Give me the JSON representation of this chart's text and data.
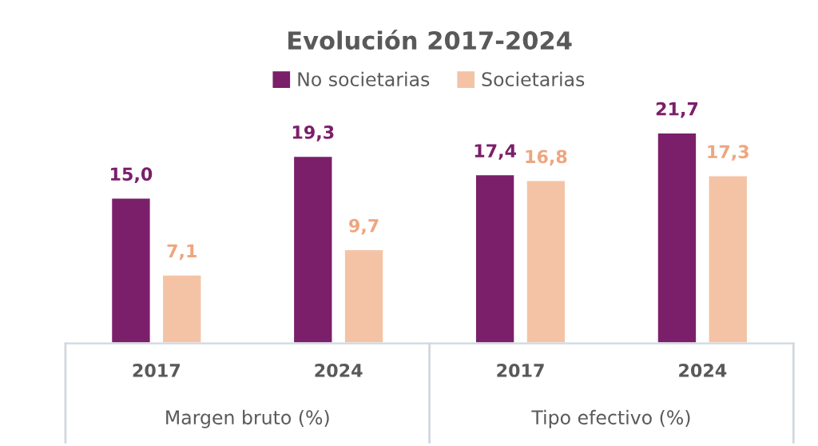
{
  "chart_data": {
    "type": "bar",
    "title": "Evolución 2017-2024",
    "categories": [
      "2017",
      "2024",
      "2017",
      "2024"
    ],
    "annotations": [
      "Margen bruto (%)",
      "Tipo efectivo (%)"
    ],
    "series": [
      {
        "name": "No societarias",
        "color": "#7b1f6a",
        "values": [
          15.0,
          19.3,
          17.4,
          21.7
        ],
        "value_labels": [
          "15,0",
          "19,3",
          "17,4",
          "21,7"
        ]
      },
      {
        "name": "Societarias",
        "color": "#f4c3a6",
        "values": [
          7.1,
          9.7,
          16.8,
          17.3
        ],
        "value_labels": [
          "7,1",
          "9,7",
          "16,8",
          "17,3"
        ]
      }
    ],
    "legend": "top",
    "grid": false
  }
}
